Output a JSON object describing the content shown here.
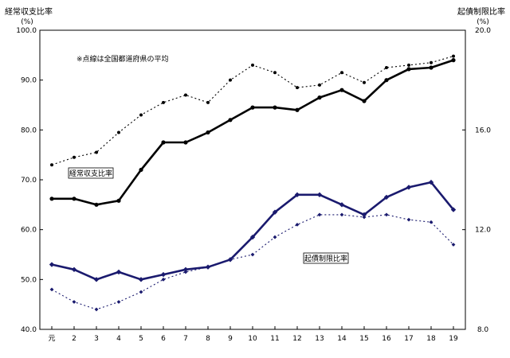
{
  "chart_data": {
    "type": "line",
    "left_axis": {
      "title": "経常収支比率",
      "unit": "(%)",
      "range": [
        40.0,
        100.0
      ],
      "ticks": [
        "40.0",
        "50.0",
        "60.0",
        "70.0",
        "80.0",
        "90.0",
        "100.0"
      ]
    },
    "right_axis": {
      "title": "起債制限比率",
      "unit": "(%)",
      "range": [
        8.0,
        20.0
      ],
      "ticks": [
        "8.0",
        "12.0",
        "16.0",
        "20.0"
      ]
    },
    "categories": [
      "元",
      "2",
      "3",
      "4",
      "5",
      "6",
      "7",
      "8",
      "9",
      "10",
      "11",
      "12",
      "13",
      "14",
      "15",
      "16",
      "17",
      "18",
      "19"
    ],
    "note": "※点線は全国都道府県の平均",
    "series": [
      {
        "name": "経常収支比率",
        "axis": "left",
        "style": "solid",
        "color": "#000000",
        "values": [
          66.2,
          66.2,
          65.0,
          65.8,
          72.0,
          77.5,
          77.5,
          79.5,
          82.0,
          84.5,
          84.5,
          84.0,
          86.5,
          88.0,
          85.8,
          90.0,
          92.2,
          92.5,
          94.0
        ]
      },
      {
        "name": "経常収支比率（全国平均）",
        "axis": "left",
        "style": "dotted",
        "color": "#000000",
        "values": [
          73.0,
          74.5,
          75.5,
          79.5,
          83.0,
          85.5,
          87.0,
          85.5,
          90.0,
          93.0,
          91.5,
          88.5,
          89.0,
          91.5,
          89.5,
          92.5,
          93.0,
          93.5,
          94.8
        ]
      },
      {
        "name": "起債制限比率",
        "axis": "right",
        "style": "solid",
        "color": "#1a1a6e",
        "values": [
          10.6,
          10.4,
          10.0,
          10.3,
          10.0,
          10.2,
          10.4,
          10.5,
          10.8,
          11.7,
          12.7,
          13.4,
          13.4,
          13.0,
          12.6,
          13.3,
          13.7,
          13.9,
          12.8
        ]
      },
      {
        "name": "起債制限比率（全国平均）",
        "axis": "right",
        "style": "dotted",
        "color": "#1a1a6e",
        "values": [
          9.6,
          9.1,
          8.8,
          9.1,
          9.5,
          10.0,
          10.3,
          10.5,
          10.8,
          11.0,
          11.7,
          12.2,
          12.6,
          12.6,
          12.5,
          12.6,
          12.4,
          12.3,
          11.4
        ]
      }
    ]
  },
  "labels": {
    "left_title": "経常収支比率",
    "left_unit": "(%)",
    "right_title": "起債制限比率",
    "right_unit": "(%)",
    "note": "※点線は全国都道府県の平均",
    "box_keijo": "経常収支比率",
    "box_kisai": "起債制限比率"
  }
}
